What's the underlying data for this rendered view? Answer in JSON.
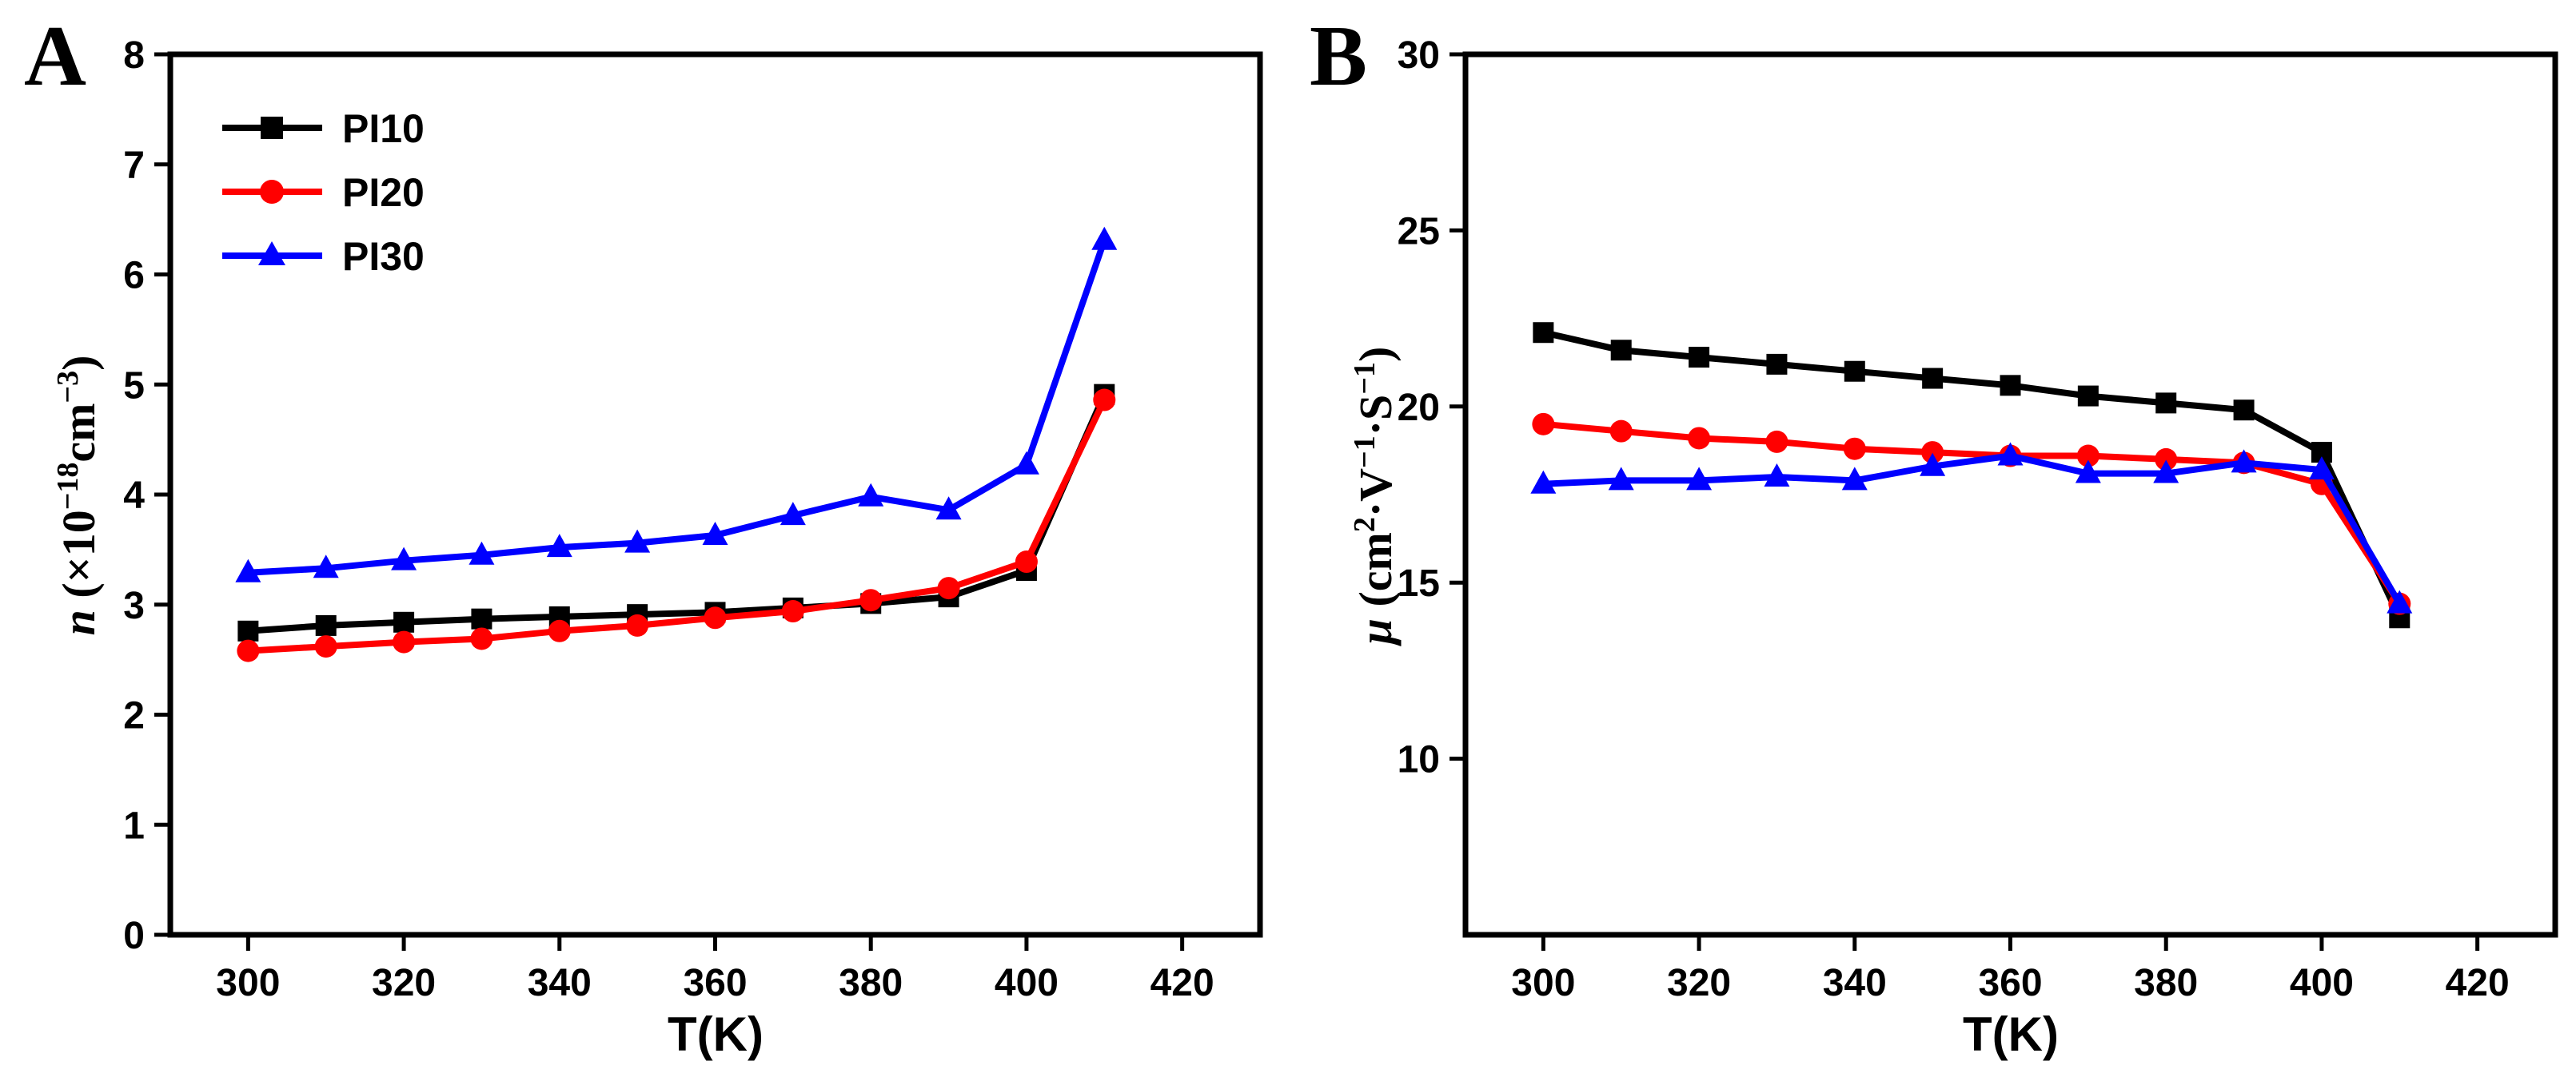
{
  "chart_data": [
    {
      "panel": "A",
      "type": "line",
      "ylabel": {
        "symbol": "n",
        "open": " (×10",
        "exp": "−18",
        "unit": "cm",
        "unit_exp": "−3",
        "close": ")"
      },
      "xlabel": "T(K)",
      "xlim": [
        290,
        430
      ],
      "ylim": [
        0,
        8
      ],
      "xticks": [
        300,
        320,
        340,
        360,
        380,
        400,
        420
      ],
      "yticks": [
        0,
        1,
        2,
        3,
        4,
        5,
        6,
        7,
        8
      ],
      "legend": {
        "position": "top-left",
        "entries": [
          "PI10",
          "PI20",
          "PI30"
        ]
      },
      "x": [
        300,
        310,
        320,
        330,
        340,
        350,
        360,
        370,
        380,
        390,
        400,
        410
      ],
      "series": [
        {
          "name": "PI10",
          "color": "#000000",
          "marker": "square",
          "values": [
            2.76,
            2.81,
            2.84,
            2.87,
            2.89,
            2.91,
            2.93,
            2.97,
            3.01,
            3.07,
            3.31,
            4.91
          ]
        },
        {
          "name": "PI20",
          "color": "#ff0000",
          "marker": "circle",
          "values": [
            2.58,
            2.62,
            2.66,
            2.69,
            2.76,
            2.81,
            2.88,
            2.94,
            3.04,
            3.15,
            3.39,
            4.86
          ]
        },
        {
          "name": "PI30",
          "color": "#0000ff",
          "marker": "triangle",
          "values": [
            3.29,
            3.33,
            3.4,
            3.45,
            3.52,
            3.56,
            3.63,
            3.81,
            3.98,
            3.86,
            4.27,
            6.31
          ]
        }
      ]
    },
    {
      "panel": "B",
      "type": "line",
      "ylabel": {
        "symbol": "μ",
        "open": " (cm",
        "e1": "2",
        "mid1": "·V",
        "e2": "−1",
        "mid2": "·S",
        "e3": "−1",
        "close": ")"
      },
      "xlabel": "T(K)",
      "xlim": [
        290,
        430
      ],
      "ylim": [
        5,
        30
      ],
      "xticks": [
        300,
        320,
        340,
        360,
        380,
        400,
        420
      ],
      "yticks": [
        10,
        15,
        20,
        25,
        30
      ],
      "x": [
        300,
        310,
        320,
        330,
        340,
        350,
        360,
        370,
        380,
        390,
        400,
        410
      ],
      "series": [
        {
          "name": "PI10",
          "color": "#000000",
          "marker": "square",
          "values": [
            22.1,
            21.6,
            21.4,
            21.2,
            21.0,
            20.8,
            20.6,
            20.3,
            20.1,
            19.9,
            18.7,
            14.0
          ]
        },
        {
          "name": "PI20",
          "color": "#ff0000",
          "marker": "circle",
          "values": [
            19.5,
            19.3,
            19.1,
            19.0,
            18.8,
            18.7,
            18.6,
            18.6,
            18.5,
            18.4,
            17.8,
            14.4
          ]
        },
        {
          "name": "PI30",
          "color": "#0000ff",
          "marker": "triangle",
          "values": [
            17.8,
            17.9,
            17.9,
            18.0,
            17.9,
            18.3,
            18.6,
            18.1,
            18.1,
            18.4,
            18.2,
            14.4
          ]
        }
      ]
    }
  ]
}
